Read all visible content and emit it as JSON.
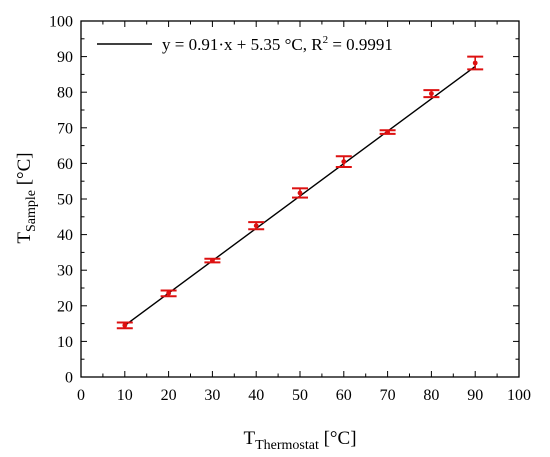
{
  "chart_data": {
    "type": "scatter",
    "x_axis": {
      "label_main": "T",
      "label_sub": "Thermostat",
      "label_unit": " [°C]",
      "min": 0,
      "max": 100,
      "major_step": 10,
      "minor_step": 5,
      "tick_labels": [
        "0",
        "10",
        "20",
        "30",
        "40",
        "50",
        "60",
        "70",
        "80",
        "90",
        "100"
      ]
    },
    "y_axis": {
      "label_main": "T",
      "label_sub": "Sample",
      "label_unit": " [°C]",
      "min": 0,
      "max": 100,
      "major_step": 10,
      "minor_step": 5,
      "tick_labels": [
        "0",
        "10",
        "20",
        "30",
        "40",
        "50",
        "60",
        "70",
        "80",
        "90",
        "100"
      ]
    },
    "series": [
      {
        "kind": "points-with-error",
        "color": "#dd1111",
        "x": [
          10,
          20,
          30,
          40,
          50,
          60,
          70,
          80,
          90
        ],
        "y": [
          14.5,
          23.5,
          32.7,
          42.5,
          51.7,
          60.5,
          68.8,
          79.6,
          88.2
        ],
        "err": [
          0.8,
          0.8,
          0.5,
          1.0,
          1.3,
          1.5,
          0.5,
          1.0,
          1.8
        ]
      },
      {
        "kind": "fit-line",
        "color": "#000000",
        "slope": 0.91,
        "intercept": 5.35,
        "x_range": [
          10,
          90
        ]
      }
    ],
    "legend": {
      "position": "top-left",
      "text_before_sup": "y = 0.91·x  + 5.35 °C,  R",
      "sup": "2",
      "text_after_sup": " = 0.9991"
    },
    "grid": false
  }
}
